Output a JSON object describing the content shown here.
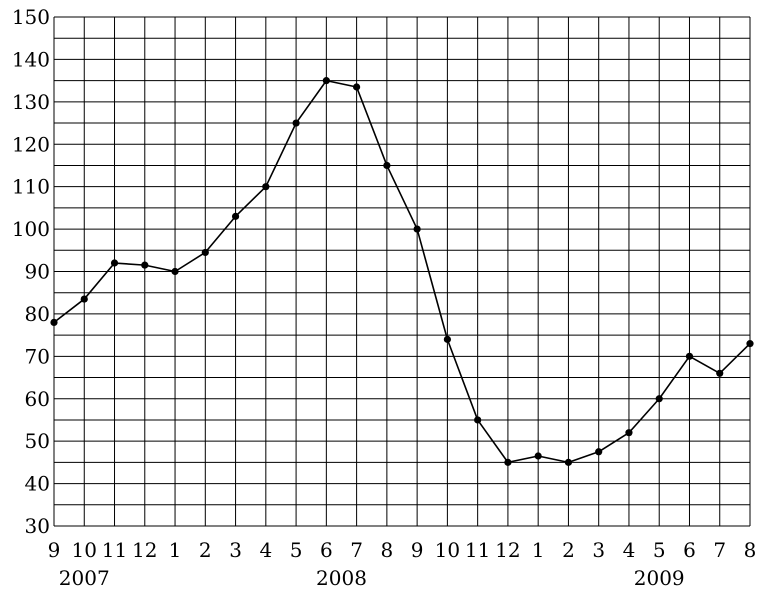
{
  "chart_data": {
    "type": "line",
    "title": "",
    "xlabel": "",
    "ylabel": "",
    "ylim": [
      30,
      150
    ],
    "y_ticks": [
      30,
      40,
      50,
      60,
      70,
      80,
      90,
      100,
      110,
      120,
      130,
      140,
      150
    ],
    "y_minor_step": 5,
    "grid": true,
    "categories": [
      "9",
      "10",
      "11",
      "12",
      "1",
      "2",
      "3",
      "4",
      "5",
      "6",
      "7",
      "8",
      "9",
      "10",
      "11",
      "12",
      "1",
      "2",
      "3",
      "4",
      "5",
      "6",
      "7",
      "8"
    ],
    "years": [
      {
        "label": "2007",
        "under_index": 1
      },
      {
        "label": "2008",
        "under_index": 9.5
      },
      {
        "label": "2009",
        "under_index": 20
      }
    ],
    "series": [
      {
        "values": [
          78,
          83.5,
          92,
          91.5,
          90,
          94.5,
          103,
          110,
          125,
          135,
          133.5,
          115,
          100,
          74,
          55,
          45,
          46.5,
          45,
          47.5,
          52,
          60,
          70,
          66,
          73
        ]
      }
    ]
  }
}
